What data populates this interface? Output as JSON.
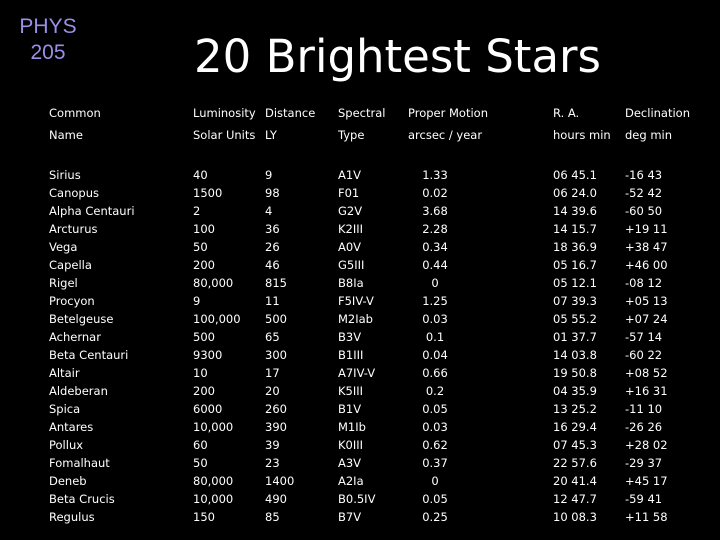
{
  "course": {
    "line1": "PHYS",
    "line2": "205"
  },
  "title": "20 Brightest Stars",
  "header_row1": [
    "Common",
    "Luminosity",
    "Distance",
    "Spectral",
    "Proper Motion",
    "R. A.",
    "Declination"
  ],
  "header_row2": [
    "Name",
    "Solar Units",
    "LY",
    "Type",
    "arcsec / year",
    "hours min",
    "deg min"
  ],
  "stars": [
    [
      "Sirius",
      "40",
      "9",
      "A1V",
      "1.33",
      "06 45.1",
      "-16 43"
    ],
    [
      "Canopus",
      "1500",
      "98",
      "F01",
      "0.02",
      "06 24.0",
      "-52 42"
    ],
    [
      "Alpha Centauri",
      "2",
      "4",
      "G2V",
      "3.68",
      "14 39.6",
      "-60 50"
    ],
    [
      "Arcturus",
      "100",
      "36",
      "K2III",
      "2.28",
      "14 15.7",
      "+19 11"
    ],
    [
      "Vega",
      "50",
      "26",
      "A0V",
      "0.34",
      "18 36.9",
      "+38 47"
    ],
    [
      "Capella",
      "200",
      "46",
      "G5III",
      "0.44",
      "05 16.7",
      "+46 00"
    ],
    [
      "Rigel",
      "80,000",
      "815",
      "B8Ia",
      "0",
      "05 12.1",
      "-08 12"
    ],
    [
      "Procyon",
      "9",
      "11",
      "F5IV-V",
      "1.25",
      "07 39.3",
      "+05 13"
    ],
    [
      "Betelgeuse",
      "100,000",
      "500",
      "M2Iab",
      "0.03",
      "05 55.2",
      "+07 24"
    ],
    [
      "Achernar",
      "500",
      "65",
      "B3V",
      "0.1",
      "01 37.7",
      "-57 14"
    ],
    [
      "Beta Centauri",
      "9300",
      "300",
      "B1III",
      "0.04",
      "14 03.8",
      "-60 22"
    ],
    [
      "Altair",
      "10",
      "17",
      "A7IV-V",
      "0.66",
      "19 50.8",
      "+08 52"
    ],
    [
      "Aldeberan",
      "200",
      "20",
      "K5III",
      "0.2",
      "04 35.9",
      "+16 31"
    ],
    [
      "Spica",
      "6000",
      "260",
      "B1V",
      "0.05",
      "13 25.2",
      "-11 10"
    ],
    [
      "Antares",
      "10,000",
      "390",
      "M1Ib",
      "0.03",
      "16 29.4",
      "-26 26"
    ],
    [
      "Pollux",
      "60",
      "39",
      "K0III",
      "0.62",
      "07 45.3",
      "+28 02"
    ],
    [
      "Fomalhaut",
      "50",
      "23",
      "A3V",
      "0.37",
      "22 57.6",
      "-29 37"
    ],
    [
      "Deneb",
      "80,000",
      "1400",
      "A2Ia",
      "0",
      "20 41.4",
      "+45 17"
    ],
    [
      "Beta Crucis",
      "10,000",
      "490",
      "B0.5IV",
      "0.05",
      "12 47.7",
      "-59 41"
    ],
    [
      "Regulus",
      "150",
      "85",
      "B7V",
      "0.25",
      "10 08.3",
      "+11 58"
    ]
  ]
}
